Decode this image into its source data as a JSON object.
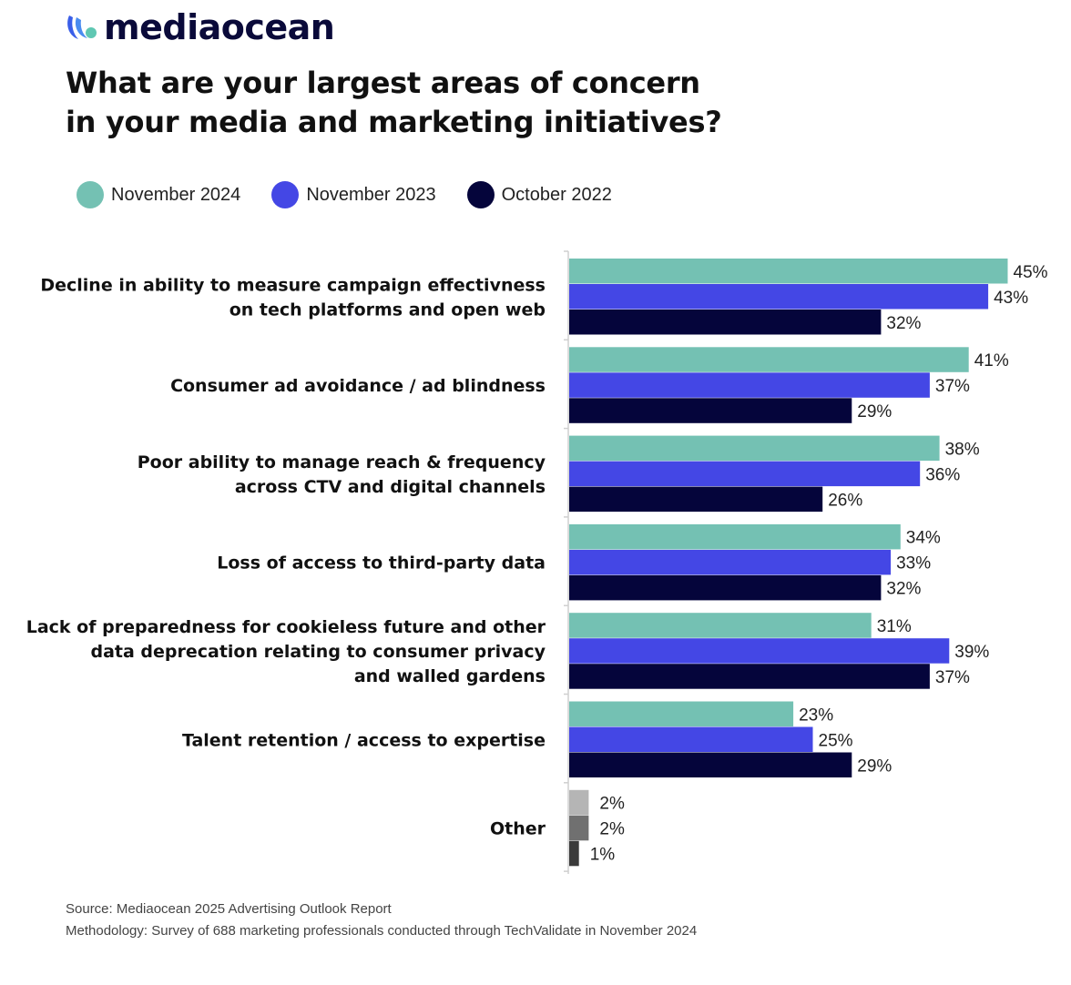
{
  "brand": {
    "name": "mediaocean",
    "logo_icon": "mediaocean-wave-icon"
  },
  "title_lines": [
    "What are your largest areas of concern",
    "in your media and marketing initiatives?"
  ],
  "legend": [
    {
      "label": "November 2024",
      "color": "#74c1b3"
    },
    {
      "label": "November 2023",
      "color": "#4447e5"
    },
    {
      "label": "October 2022",
      "color": "#05053b"
    }
  ],
  "footer": {
    "source": "Source: Mediaocean 2025 Advertising Outlook Report",
    "methodology": "Methodology: Survey of 688 marketing professionals conducted through TechValidate in November 2024"
  },
  "chart_data": {
    "type": "bar",
    "orientation": "horizontal",
    "title": "What are your largest areas of concern in your media and marketing initiatives?",
    "xlabel": "",
    "ylabel": "",
    "xlim": [
      0,
      50
    ],
    "grid": false,
    "legend_position": "top-left",
    "categories": [
      [
        "Decline in ability to measure campaign effectivness",
        "on tech platforms and open web"
      ],
      [
        "Consumer ad avoidance / ad blindness"
      ],
      [
        "Poor ability to manage reach & frequency",
        "across CTV and digital channels"
      ],
      [
        "Loss of access to third-party data"
      ],
      [
        "Lack of preparedness for cookieless future and other",
        "data deprecation relating to consumer privacy",
        "and walled gardens"
      ],
      [
        "Talent retention / access to expertise"
      ],
      [
        "Other"
      ]
    ],
    "series": [
      {
        "name": "November 2024",
        "color": "#74c1b3",
        "values": [
          45,
          41,
          38,
          34,
          31,
          23,
          2
        ]
      },
      {
        "name": "November 2023",
        "color": "#4447e5",
        "values": [
          43,
          37,
          36,
          33,
          39,
          25,
          2
        ]
      },
      {
        "name": "October 2022",
        "color": "#05053b",
        "values": [
          32,
          29,
          26,
          32,
          37,
          29,
          1
        ]
      }
    ],
    "other_colors": [
      "#b5b5b5",
      "#707070",
      "#3a3a3a"
    ],
    "value_suffix": "%"
  }
}
